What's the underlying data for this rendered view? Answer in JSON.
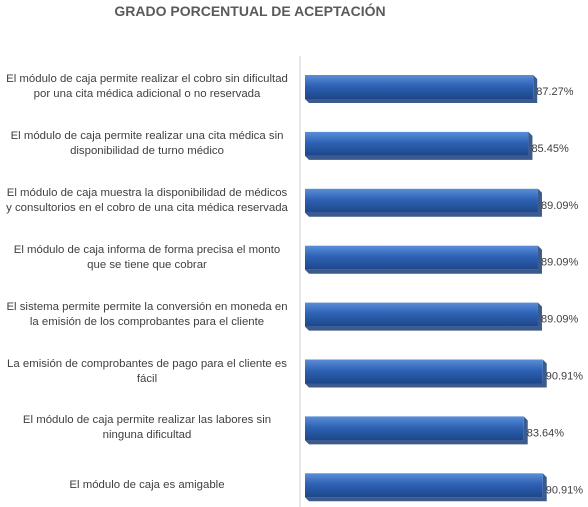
{
  "chart_data": {
    "type": "bar",
    "orientation": "horizontal",
    "title": "GRADO PORCENTUAL DE ACEPTACIÓN",
    "xlabel": "",
    "ylabel": "",
    "categories": [
      "El módulo de caja permite realizar el cobro sin dificultad por una cita médica adicional o no reservada",
      "El módulo de caja permite realizar una cita médica sin disponibilidad de turno médico",
      "El módulo de caja muestra la disponibilidad de médicos y consultorios en el cobro de una cita médica reservada",
      "El módulo de caja informa de forma precisa el monto que se tiene que cobrar",
      "El sistema permite permite la conversión en moneda en la emisión de los comprobantes para el cliente",
      "La emisión de comprobantes de pago para el cliente es fácil",
      "El módulo de caja permite realizar las labores sin ninguna dificultad",
      "El módulo de caja es amigable"
    ],
    "values": [
      87.27,
      85.45,
      89.09,
      89.09,
      89.09,
      90.91,
      83.64,
      90.91
    ],
    "value_labels": [
      "87.27%",
      "85.45%",
      "89.09%",
      "89.09%",
      "89.09%",
      "90.91%",
      "83.64%",
      "90.91%"
    ],
    "bar_color": "#2e62b4",
    "legend": "none",
    "grid": false
  }
}
